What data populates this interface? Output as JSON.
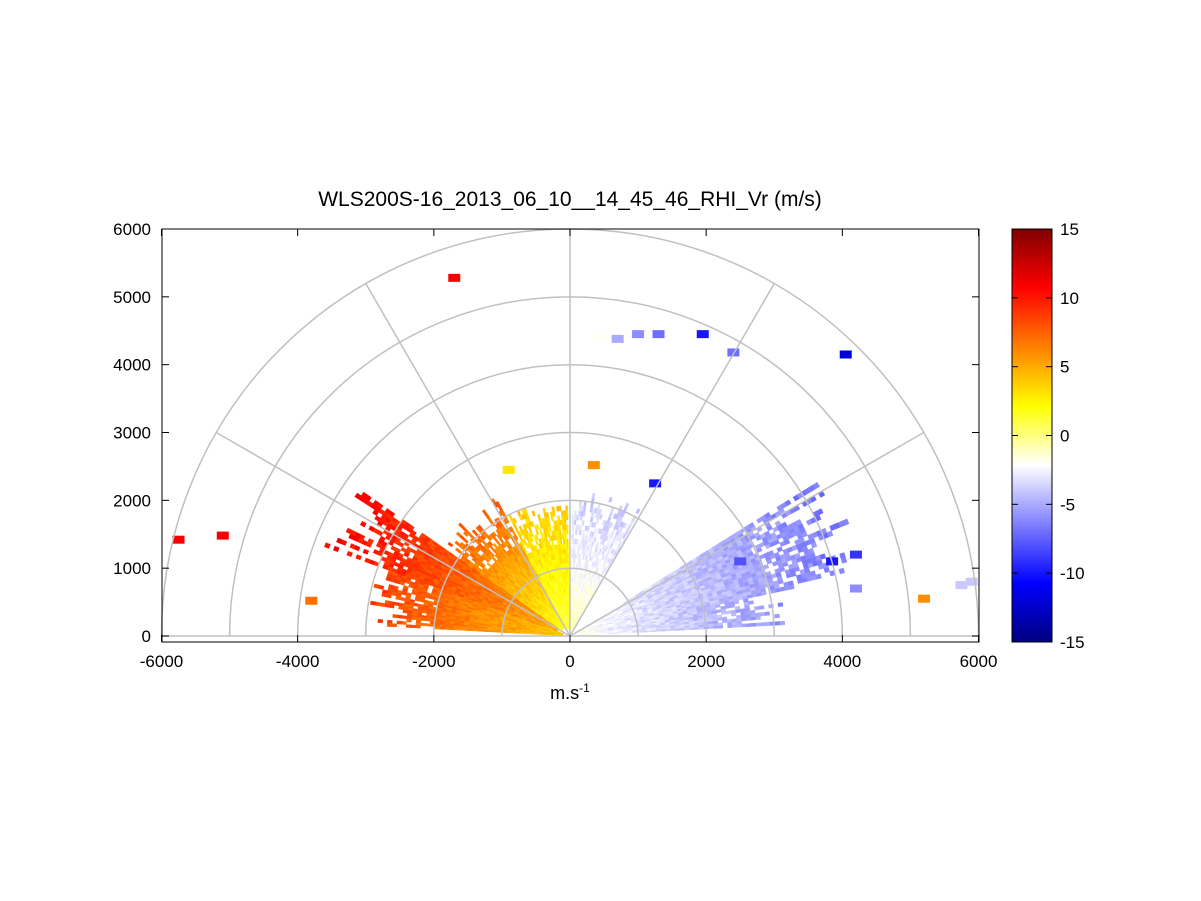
{
  "chart_data": {
    "type": "heatmap",
    "subtype": "polar RHI scan (range-height indicator)",
    "title": "WLS200S-16_2013_06_10__14_45_46_RHI_Vr (m/s)",
    "xlabel_base": "m.s",
    "xlabel_exp": "-1",
    "xlim": [
      -6000,
      6000
    ],
    "ylim": [
      0,
      6000
    ],
    "xticks": [
      "-6000",
      "-4000",
      "-2000",
      "0",
      "2000",
      "4000",
      "6000"
    ],
    "yticks": [
      "0",
      "1000",
      "2000",
      "3000",
      "4000",
      "5000",
      "6000"
    ],
    "polar_grid": {
      "range_rings_m": [
        1000,
        2000,
        3000,
        4000,
        5000,
        6000
      ],
      "spoke_angles_deg": [
        0,
        30,
        60,
        90,
        120,
        150,
        180
      ]
    },
    "colorbar": {
      "limits": [
        -15,
        15
      ],
      "tick_labels": [
        "15",
        "10",
        "5",
        "0",
        "-5",
        "-10",
        "-15"
      ],
      "colormap": [
        "#000080",
        "#0000ff",
        "#8080ff",
        "#ffffff",
        "#ffff00",
        "#ff8000",
        "#ff0000",
        "#800000"
      ]
    },
    "sectors": [
      {
        "name": "left-low-red-orange",
        "el_deg": [
          160,
          177
        ],
        "range_m": [
          100,
          3000
        ],
        "vr_near": 4,
        "vr_far": 9
      },
      {
        "name": "left-mid-red",
        "el_deg": [
          145,
          160
        ],
        "range_m": [
          200,
          3800
        ],
        "vr_near": 5,
        "vr_far": 11
      },
      {
        "name": "left-upper-orange",
        "el_deg": [
          118,
          145
        ],
        "range_m": [
          150,
          2300
        ],
        "vr_near": 2,
        "vr_far": 8
      },
      {
        "name": "left-steep-yellow",
        "el_deg": [
          91,
          118
        ],
        "range_m": [
          100,
          2000
        ],
        "vr_near": 1,
        "vr_far": 4
      },
      {
        "name": "right-steep-light-blue",
        "el_deg": [
          60,
          89
        ],
        "range_m": [
          100,
          2100
        ],
        "vr_near": -1,
        "vr_far": -4
      },
      {
        "name": "right-mid-blue",
        "el_deg": [
          12,
          32
        ],
        "range_m": [
          150,
          4400
        ],
        "vr_near": -2,
        "vr_far": -7
      },
      {
        "name": "right-low-blue",
        "el_deg": [
          3,
          12
        ],
        "range_m": [
          150,
          3200
        ],
        "vr_near": -2,
        "vr_far": -6
      }
    ],
    "isolated_echoes": [
      {
        "x": -1700,
        "y": 5280,
        "vr": 11
      },
      {
        "x": -5750,
        "y": 1420,
        "vr": 11
      },
      {
        "x": -5100,
        "y": 1480,
        "vr": 11
      },
      {
        "x": -3800,
        "y": 520,
        "vr": 7
      },
      {
        "x": -900,
        "y": 2450,
        "vr": 3
      },
      {
        "x": 350,
        "y": 2520,
        "vr": 6
      },
      {
        "x": 450,
        "y": 4400,
        "vr": -2
      },
      {
        "x": 700,
        "y": 4380,
        "vr": -5
      },
      {
        "x": 1000,
        "y": 4450,
        "vr": -6
      },
      {
        "x": 1300,
        "y": 4450,
        "vr": -7
      },
      {
        "x": 1950,
        "y": 4450,
        "vr": -10
      },
      {
        "x": 2400,
        "y": 4180,
        "vr": -7
      },
      {
        "x": 4050,
        "y": 4150,
        "vr": -12
      },
      {
        "x": 1250,
        "y": 2250,
        "vr": -10
      },
      {
        "x": 2500,
        "y": 1100,
        "vr": -8
      },
      {
        "x": 3850,
        "y": 1100,
        "vr": -10
      },
      {
        "x": 4200,
        "y": 1200,
        "vr": -9
      },
      {
        "x": 4200,
        "y": 700,
        "vr": -6
      },
      {
        "x": 5200,
        "y": 550,
        "vr": 6
      },
      {
        "x": 5750,
        "y": 750,
        "vr": -4
      },
      {
        "x": 5900,
        "y": 800,
        "vr": -4
      }
    ]
  }
}
